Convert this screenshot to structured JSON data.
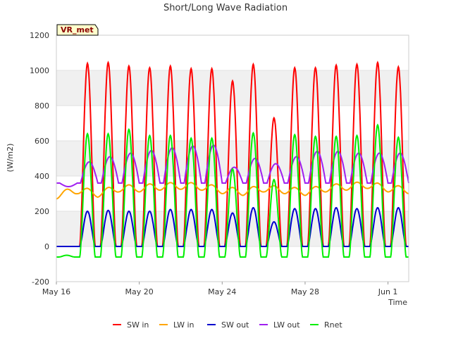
{
  "chart_data": {
    "type": "line",
    "title": "Short/Long Wave Radiation",
    "xlabel": "Time",
    "ylabel": "(W/m2)",
    "badge": "VR_met",
    "ylim": [
      -200,
      1200
    ],
    "yticks": [
      -200,
      0,
      200,
      400,
      600,
      800,
      1000,
      1200
    ],
    "xlim": [
      "2024-05-16",
      "2024-06-02"
    ],
    "xticks": [
      {
        "date": "2024-05-16",
        "label": "May 16"
      },
      {
        "date": "2024-05-20",
        "label": "May 20"
      },
      {
        "date": "2024-05-24",
        "label": "May 24"
      },
      {
        "date": "2024-05-28",
        "label": "May 28"
      },
      {
        "date": "2024-06-01",
        "label": "Jun 1"
      }
    ],
    "grid": "horizontal bands",
    "legend_position": "bottom",
    "series": [
      {
        "name": "SW in",
        "color": "#ff0000",
        "x": [
          "2024-05-16",
          "2024-05-17",
          "2024-05-18",
          "2024-05-19",
          "2024-05-20",
          "2024-05-21",
          "2024-05-22",
          "2024-05-23",
          "2024-05-24",
          "2024-05-25",
          "2024-05-26",
          "2024-05-27",
          "2024-05-28",
          "2024-05-29",
          "2024-05-30",
          "2024-05-31",
          "2024-06-01",
          "2024-06-02"
        ],
        "values": [
          0,
          1040,
          1045,
          1025,
          1015,
          1025,
          1010,
          1010,
          940,
          1035,
          730,
          1015,
          1015,
          1030,
          1035,
          1045,
          1020,
          0
        ]
      },
      {
        "name": "LW in",
        "color": "#ffa500",
        "x": [
          "2024-05-16",
          "2024-05-17",
          "2024-05-18",
          "2024-05-19",
          "2024-05-20",
          "2024-05-21",
          "2024-05-22",
          "2024-05-23",
          "2024-05-24",
          "2024-05-25",
          "2024-05-26",
          "2024-05-27",
          "2024-05-28",
          "2024-05-29",
          "2024-05-30",
          "2024-05-31",
          "2024-06-01",
          "2024-06-02"
        ],
        "values": [
          290,
          320,
          300,
          330,
          330,
          340,
          345,
          340,
          320,
          310,
          330,
          320,
          310,
          330,
          340,
          350,
          330,
          320
        ]
      },
      {
        "name": "SW out",
        "color": "#0000cd",
        "x": [
          "2024-05-16",
          "2024-05-17",
          "2024-05-18",
          "2024-05-19",
          "2024-05-20",
          "2024-05-21",
          "2024-05-22",
          "2024-05-23",
          "2024-05-24",
          "2024-05-25",
          "2024-05-26",
          "2024-05-27",
          "2024-05-28",
          "2024-05-29",
          "2024-05-30",
          "2024-05-31",
          "2024-06-01",
          "2024-06-02"
        ],
        "values": [
          0,
          200,
          205,
          200,
          200,
          210,
          210,
          210,
          190,
          220,
          140,
          215,
          215,
          220,
          215,
          220,
          220,
          0
        ]
      },
      {
        "name": "LW out",
        "color": "#a020f0",
        "x": [
          "2024-05-16",
          "2024-05-17",
          "2024-05-18",
          "2024-05-19",
          "2024-05-20",
          "2024-05-21",
          "2024-05-22",
          "2024-05-23",
          "2024-05-24",
          "2024-05-25",
          "2024-05-26",
          "2024-05-27",
          "2024-05-28",
          "2024-05-29",
          "2024-05-30",
          "2024-05-31",
          "2024-06-01",
          "2024-06-02"
        ],
        "values": [
          340,
          480,
          510,
          530,
          545,
          560,
          570,
          575,
          450,
          500,
          470,
          510,
          540,
          540,
          530,
          530,
          530,
          370
        ]
      },
      {
        "name": "Rnet",
        "color": "#00ee00",
        "x": [
          "2024-05-16",
          "2024-05-17",
          "2024-05-18",
          "2024-05-19",
          "2024-05-20",
          "2024-05-21",
          "2024-05-22",
          "2024-05-23",
          "2024-05-24",
          "2024-05-25",
          "2024-05-26",
          "2024-05-27",
          "2024-05-28",
          "2024-05-29",
          "2024-05-30",
          "2024-05-31",
          "2024-06-01",
          "2024-06-02"
        ],
        "values": [
          -50,
          640,
          640,
          665,
          630,
          630,
          615,
          615,
          440,
          645,
          380,
          635,
          625,
          625,
          630,
          690,
          620,
          -50
        ]
      }
    ]
  }
}
